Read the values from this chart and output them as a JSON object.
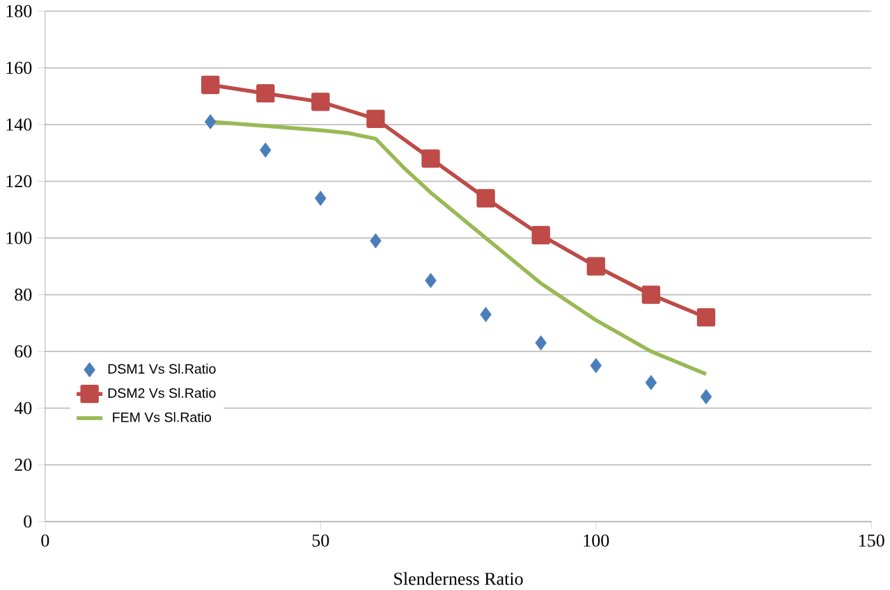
{
  "chart_data": {
    "type": "line",
    "xlabel": "Slenderness Ratio",
    "xlim": [
      0,
      150
    ],
    "xticks": [
      0,
      50,
      100,
      150
    ],
    "ylim": [
      0,
      180
    ],
    "yticks": [
      0,
      20,
      40,
      60,
      80,
      100,
      120,
      140,
      160,
      180
    ],
    "grid": "y",
    "legend": "left",
    "series": [
      {
        "name": "DSM1 Vs Sl.Ratio",
        "type": "scatter",
        "marker": "diamond",
        "color": "#4a7ebb",
        "x": [
          30,
          40,
          50,
          60,
          70,
          80,
          90,
          100,
          110,
          120
        ],
        "values": [
          141,
          131,
          114,
          99,
          85,
          73,
          63,
          55,
          49,
          44
        ]
      },
      {
        "name": "DSM2 Vs Sl.Ratio",
        "marker": "square",
        "color": "#be4b48",
        "x": [
          30,
          40,
          50,
          60,
          70,
          80,
          90,
          100,
          110,
          120
        ],
        "values": [
          154,
          151,
          148,
          142,
          128,
          114,
          101,
          90,
          80,
          72
        ]
      },
      {
        "name": "FEM Vs Sl.Ratio",
        "marker": "none",
        "color": "#98b954",
        "x": [
          30,
          40,
          50,
          55,
          60,
          65,
          70,
          80,
          90,
          100,
          110,
          120
        ],
        "values": [
          141,
          139.5,
          138,
          137,
          135,
          125,
          116,
          100,
          84,
          71,
          60,
          52
        ]
      }
    ]
  }
}
